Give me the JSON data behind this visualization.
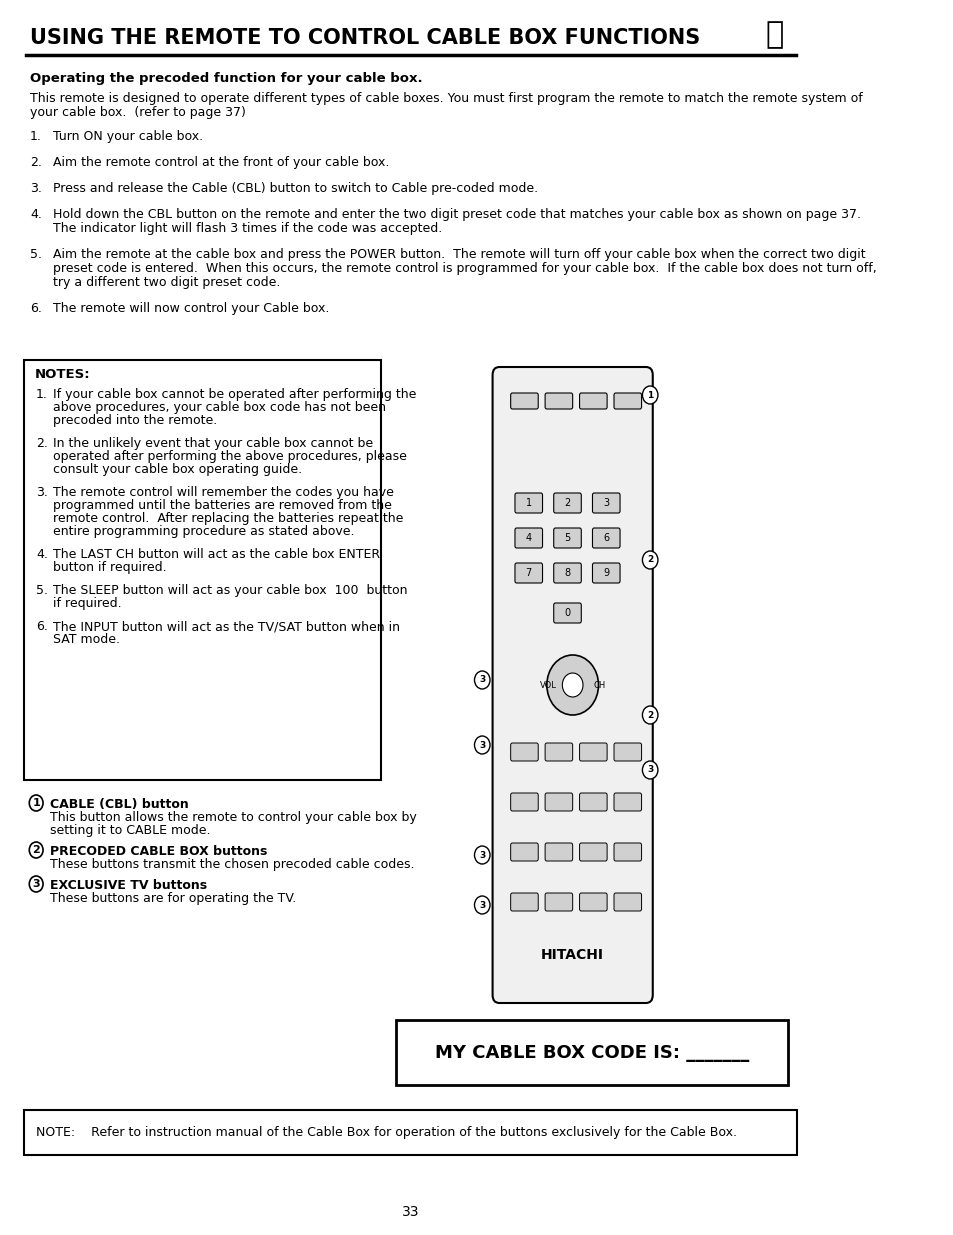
{
  "title": "USING THE REMOTE TO CONTROL CABLE BOX FUNCTIONS",
  "subtitle": "Operating the precoded function for your cable box.",
  "intro": "This remote is designed to operate different types of cable boxes. You must first program the remote to match the remote system of your cable box.  (refer to page 37)",
  "steps": [
    "Turn ON your cable box.",
    "Aim the remote control at the front of your cable box.",
    "Press and release the Cable (CBL) button to switch to Cable pre-coded mode.",
    "Hold down the CBL button on the remote and enter the two digit preset code that matches your cable box as shown on page 37.\n    The indicator light will flash 3 times if the code was accepted.",
    "Aim the remote at the cable box and press the POWER button.  The remote will turn off your cable box when the correct two digit\n    preset code is entered.  When this occurs, the remote control is programmed for your cable box.  If the cable box does not turn off,\n    try a different two digit preset code.",
    "The remote will now control your Cable box."
  ],
  "notes_title": "NOTES:",
  "notes": [
    "If your cable box cannot be operated after performing the above procedures, your cable box code has not been precoded into the remote.",
    "In the unlikely event that your cable box cannot be operated after performing the above procedures, please consult your cable box operating guide.",
    "The remote control will remember the codes you have programmed until the batteries are removed from the remote control.  After replacing the batteries repeat the entire programming procedure as stated above.",
    "The LAST CH button will act as the cable box ENTER button if required.",
    "The SLEEP button will act as your cable box  100  button if required.",
    "The INPUT button will act as the TV/SAT button when in SAT mode."
  ],
  "legend": [
    {
      "num": "1",
      "bold": "CABLE (CBL) button",
      "text": "This button allows the remote to control your cable box by\nsetting it to CABLE mode."
    },
    {
      "num": "2",
      "bold": "PRECODED CABLE BOX buttons",
      "text": "These buttons transmit the chosen precoded cable codes."
    },
    {
      "num": "3",
      "bold": "EXCLUSIVE TV buttons",
      "text": "These buttons are for operating the TV."
    }
  ],
  "cable_box_label": "MY CABLE BOX CODE IS: _______",
  "note_bottom": "NOTE:    Refer to instruction manual of the Cable Box for operation of the buttons exclusively for the Cable Box.",
  "page_number": "33",
  "bg_color": "#ffffff",
  "text_color": "#000000"
}
